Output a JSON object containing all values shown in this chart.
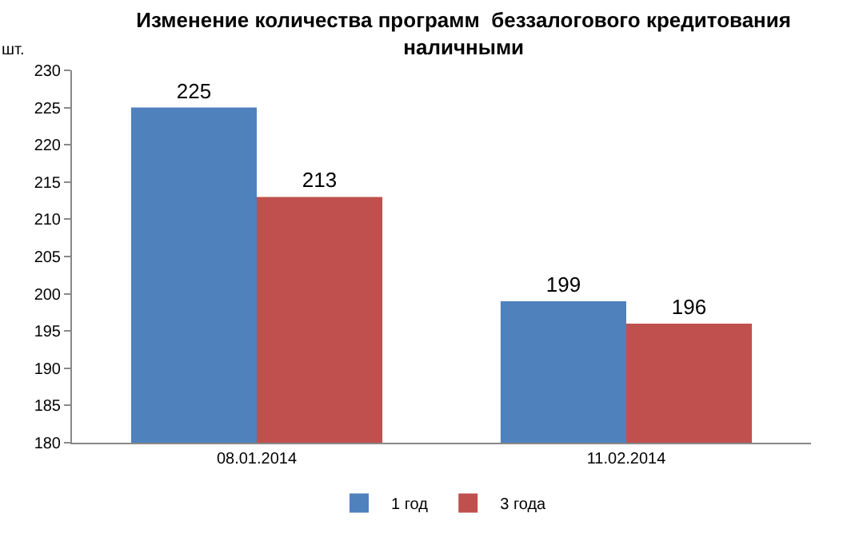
{
  "chart_data": {
    "type": "bar",
    "title": "Изменение количества программ  беззалогового кредитования наличными",
    "ylabel": "шт.",
    "categories": [
      "08.01.2014",
      "11.02.2014"
    ],
    "series": [
      {
        "name": "1 год",
        "color": "#4f81bd",
        "values": [
          225,
          199
        ]
      },
      {
        "name": "3 года",
        "color": "#c0504d",
        "values": [
          213,
          196
        ]
      }
    ],
    "ylim": [
      180,
      230
    ],
    "yticks": [
      180,
      185,
      190,
      195,
      200,
      205,
      210,
      215,
      220,
      225,
      230
    ],
    "data_labels": true,
    "legend": "bottom",
    "grid": false
  }
}
